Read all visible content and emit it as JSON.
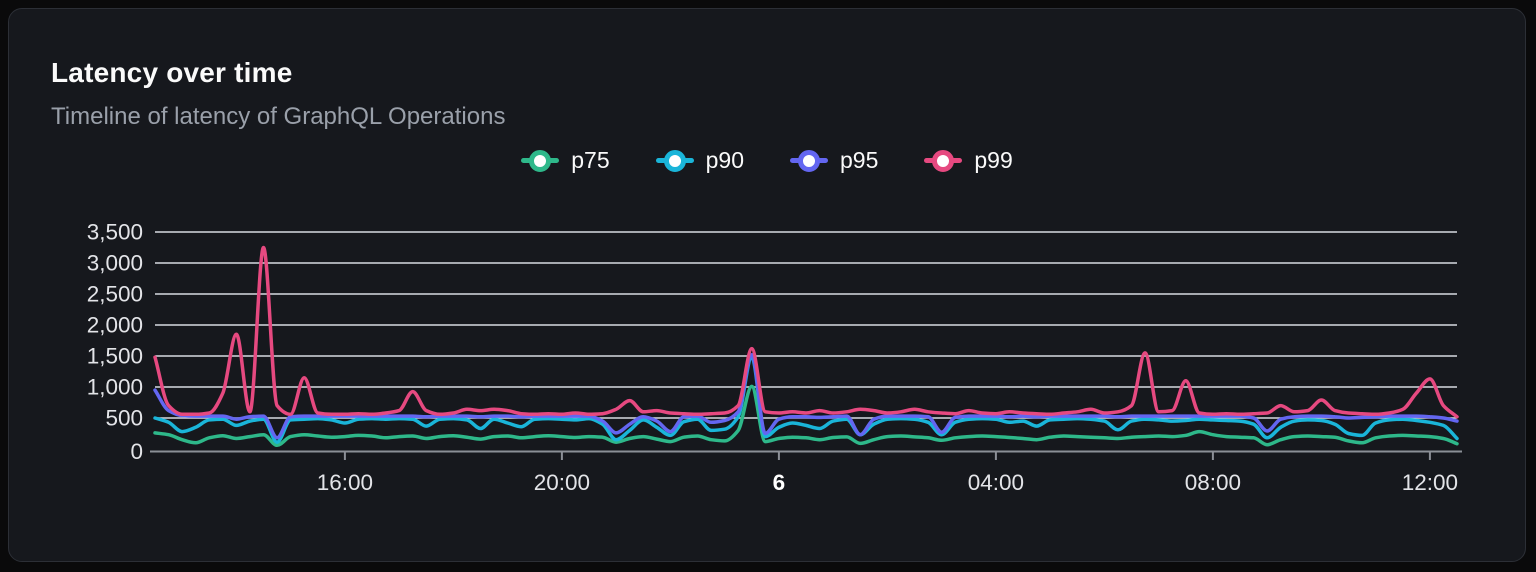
{
  "card": {
    "title": "Latency over time",
    "subtitle": "Timeline of latency of GraphQL Operations"
  },
  "legend": [
    {
      "label": "p75",
      "color": "#2eb88a"
    },
    {
      "label": "p90",
      "color": "#1ab5d9"
    },
    {
      "label": "p95",
      "color": "#6366f1"
    },
    {
      "label": "p99",
      "color": "#e64980"
    }
  ],
  "colors": {
    "card_background": "#16181d",
    "page_background": "#0a0a0b",
    "card_border": "#2c2f36",
    "gridline": "#d7dbe2",
    "axis_line": "#8b8f96",
    "axis_label": "#e3e4e8",
    "bold_label": "#ffffff",
    "title_text": "#fafafa",
    "subtitle_text": "#9aa0aa"
  },
  "chart_data": {
    "type": "line",
    "title": "Latency over time",
    "subtitle": "Timeline of latency of GraphQL Operations",
    "grid": true,
    "legend_position": "top",
    "interpolation": "monotone",
    "x_axis": {
      "start_time": "12:30",
      "span_hours": 24,
      "step_hours": 0.25,
      "ticks": [
        {
          "label": "16:00",
          "hour": 3.5,
          "bold": false
        },
        {
          "label": "20:00",
          "hour": 7.5,
          "bold": false
        },
        {
          "label": "6",
          "hour": 11.5,
          "bold": true
        },
        {
          "label": "04:00",
          "hour": 15.5,
          "bold": false
        },
        {
          "label": "08:00",
          "hour": 19.5,
          "bold": false
        },
        {
          "label": "12:00",
          "hour": 23.5,
          "bold": false
        }
      ]
    },
    "y_axis": {
      "min": 0,
      "max": 3500,
      "tick_step": 500,
      "tick_labels": [
        "0",
        "500",
        "1,000",
        "1,500",
        "2,000",
        "2,500",
        "3,000",
        "3,500"
      ]
    },
    "series": [
      {
        "name": "p75",
        "color": "#2eb88a",
        "values": [
          260,
          230,
          150,
          100,
          180,
          215,
          170,
          200,
          230,
          60,
          200,
          230,
          210,
          190,
          200,
          220,
          210,
          180,
          200,
          210,
          170,
          200,
          215,
          190,
          160,
          200,
          210,
          180,
          200,
          215,
          200,
          185,
          200,
          190,
          110,
          170,
          200,
          160,
          120,
          190,
          210,
          150,
          130,
          300,
          1010,
          120,
          170,
          190,
          180,
          150,
          185,
          195,
          90,
          150,
          200,
          210,
          195,
          180,
          140,
          180,
          200,
          210,
          200,
          185,
          170,
          150,
          190,
          210,
          200,
          190,
          180,
          170,
          190,
          200,
          210,
          200,
          220,
          280,
          230,
          200,
          190,
          180,
          70,
          150,
          200,
          210,
          200,
          190,
          130,
          100,
          180,
          210,
          220,
          210,
          200,
          170,
          85
        ]
      },
      {
        "name": "p90",
        "color": "#1ab5d9",
        "values": [
          500,
          430,
          280,
          350,
          470,
          480,
          380,
          450,
          480,
          110,
          470,
          480,
          490,
          470,
          420,
          480,
          490,
          480,
          490,
          480,
          370,
          480,
          490,
          470,
          330,
          480,
          420,
          360,
          480,
          490,
          480,
          470,
          490,
          400,
          150,
          300,
          470,
          350,
          220,
          440,
          480,
          300,
          320,
          520,
          1480,
          200,
          350,
          420,
          380,
          330,
          450,
          480,
          230,
          400,
          480,
          490,
          480,
          430,
          230,
          430,
          480,
          490,
          480,
          430,
          450,
          370,
          470,
          480,
          490,
          480,
          450,
          310,
          450,
          480,
          470,
          450,
          460,
          480,
          470,
          460,
          450,
          400,
          180,
          350,
          450,
          470,
          460,
          400,
          250,
          220,
          420,
          470,
          480,
          460,
          430,
          380,
          170
        ]
      },
      {
        "name": "p95",
        "color": "#6366f1",
        "values": [
          950,
          620,
          540,
          530,
          530,
          530,
          480,
          520,
          530,
          180,
          520,
          530,
          530,
          530,
          530,
          530,
          530,
          530,
          530,
          530,
          520,
          530,
          530,
          530,
          520,
          530,
          530,
          520,
          530,
          530,
          530,
          530,
          530,
          450,
          260,
          400,
          520,
          450,
          280,
          520,
          530,
          430,
          460,
          600,
          1520,
          250,
          480,
          520,
          520,
          510,
          520,
          530,
          230,
          480,
          530,
          530,
          530,
          520,
          270,
          510,
          530,
          530,
          530,
          520,
          530,
          520,
          530,
          530,
          530,
          530,
          530,
          520,
          530,
          530,
          530,
          530,
          530,
          530,
          530,
          530,
          530,
          500,
          290,
          480,
          520,
          530,
          530,
          520,
          500,
          510,
          520,
          530,
          530,
          530,
          520,
          500,
          450
        ]
      },
      {
        "name": "p99",
        "color": "#e64980",
        "values": [
          1480,
          700,
          560,
          560,
          580,
          900,
          1850,
          600,
          3250,
          700,
          560,
          1150,
          580,
          560,
          560,
          570,
          560,
          580,
          620,
          925,
          620,
          560,
          580,
          640,
          620,
          640,
          620,
          570,
          560,
          570,
          560,
          580,
          560,
          570,
          640,
          780,
          600,
          620,
          580,
          570,
          560,
          570,
          580,
          700,
          1620,
          600,
          580,
          600,
          580,
          620,
          580,
          600,
          640,
          620,
          580,
          600,
          640,
          600,
          580,
          570,
          620,
          580,
          570,
          600,
          580,
          570,
          560,
          580,
          600,
          640,
          580,
          600,
          700,
          1550,
          600,
          620,
          1100,
          580,
          560,
          570,
          560,
          570,
          580,
          700,
          600,
          620,
          790,
          620,
          580,
          570,
          560,
          580,
          640,
          900,
          1130,
          700,
          520
        ]
      }
    ]
  }
}
